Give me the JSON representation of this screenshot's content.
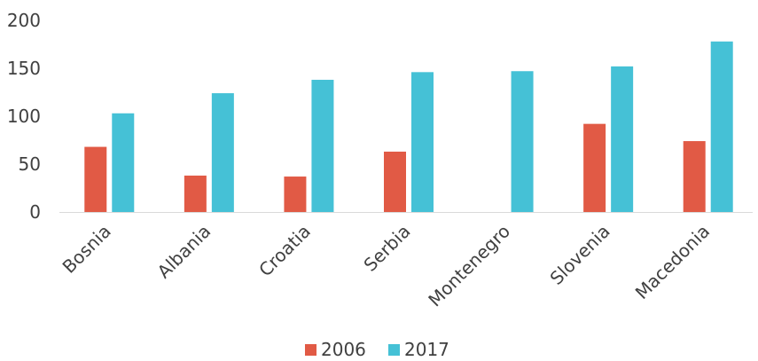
{
  "chart_data": {
    "type": "bar",
    "title": "",
    "xlabel": "",
    "ylabel": "",
    "categories": [
      "Bosnia",
      "Albania",
      "Croatia",
      "Serbia",
      "Montenegro",
      "Slovenia",
      "Macedonia"
    ],
    "series": [
      {
        "name": "2006",
        "color": "#e15a45",
        "values": [
          68,
          38,
          37,
          63,
          null,
          92,
          74
        ]
      },
      {
        "name": "2017",
        "color": "#45c1d6",
        "values": [
          103,
          124,
          138,
          146,
          147,
          152,
          178
        ]
      }
    ],
    "ylim": [
      0,
      200
    ],
    "yticks": [
      0,
      50,
      100,
      150,
      200
    ],
    "grid": false,
    "legend_position": "bottom"
  }
}
